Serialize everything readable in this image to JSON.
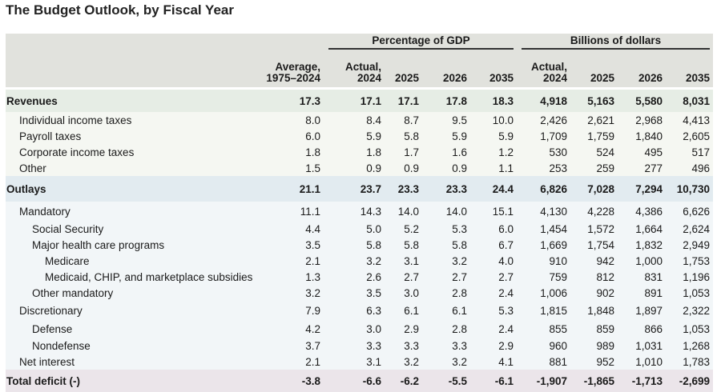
{
  "title": "The Budget Outlook, by Fiscal Year",
  "group_headers": {
    "pct": "Percentage of GDP",
    "bil": "Billions of dollars"
  },
  "columns": [
    [
      "Average,",
      "1975–2024"
    ],
    [
      "Actual,",
      "2024"
    ],
    [
      "",
      "2025"
    ],
    [
      "",
      "2026"
    ],
    [
      "",
      "2035"
    ],
    [
      "Actual,",
      "2024"
    ],
    [
      "",
      "2025"
    ],
    [
      "",
      "2026"
    ],
    [
      "",
      "2035"
    ]
  ],
  "rows": [
    {
      "label": "Revenues",
      "level": 0,
      "style": "rev",
      "values": [
        "17.3",
        "17.1",
        "17.1",
        "17.8",
        "18.3",
        "4,918",
        "5,163",
        "5,580",
        "8,031"
      ]
    },
    {
      "label": "Individual income taxes",
      "level": 1,
      "style": "revi",
      "values": [
        "8.0",
        "8.4",
        "8.7",
        "9.5",
        "10.0",
        "2,426",
        "2,621",
        "2,968",
        "4,413"
      ]
    },
    {
      "label": "Payroll taxes",
      "level": 1,
      "style": "revi",
      "values": [
        "6.0",
        "5.9",
        "5.8",
        "5.9",
        "5.9",
        "1,709",
        "1,759",
        "1,840",
        "2,605"
      ]
    },
    {
      "label": "Corporate income taxes",
      "level": 1,
      "style": "revi",
      "values": [
        "1.8",
        "1.8",
        "1.7",
        "1.6",
        "1.2",
        "530",
        "524",
        "495",
        "517"
      ]
    },
    {
      "label": "Other",
      "level": 1,
      "style": "revi",
      "values": [
        "1.5",
        "0.9",
        "0.9",
        "0.9",
        "1.1",
        "253",
        "259",
        "277",
        "496"
      ]
    },
    {
      "label": "Outlays",
      "level": 0,
      "style": "out",
      "values": [
        "21.1",
        "23.7",
        "23.3",
        "23.3",
        "24.4",
        "6,826",
        "7,028",
        "7,294",
        "10,730"
      ]
    },
    {
      "label": "Mandatory",
      "level": 1,
      "style": "outi",
      "values": [
        "11.1",
        "14.3",
        "14.0",
        "14.0",
        "15.1",
        "4,130",
        "4,228",
        "4,386",
        "6,626"
      ]
    },
    {
      "label": "Social Security",
      "level": 2,
      "style": "outi",
      "values": [
        "4.4",
        "5.0",
        "5.2",
        "5.3",
        "6.0",
        "1,454",
        "1,572",
        "1,664",
        "2,624"
      ]
    },
    {
      "label": "Major health care programs",
      "level": 2,
      "style": "outi",
      "values": [
        "3.5",
        "5.8",
        "5.8",
        "5.8",
        "6.7",
        "1,669",
        "1,754",
        "1,832",
        "2,949"
      ]
    },
    {
      "label": "Medicare",
      "level": 3,
      "style": "outi",
      "values": [
        "2.1",
        "3.2",
        "3.1",
        "3.2",
        "4.0",
        "910",
        "942",
        "1,000",
        "1,753"
      ]
    },
    {
      "label": "Medicaid, CHIP, and marketplace subsidies",
      "level": 3,
      "style": "outi",
      "values": [
        "1.3",
        "2.6",
        "2.7",
        "2.7",
        "2.7",
        "759",
        "812",
        "831",
        "1,196"
      ]
    },
    {
      "label": "Other mandatory",
      "level": 2,
      "style": "outi",
      "values": [
        "3.2",
        "3.5",
        "3.0",
        "2.8",
        "2.4",
        "1,006",
        "902",
        "891",
        "1,053"
      ]
    },
    {
      "label": "Discretionary",
      "level": 1,
      "style": "outi",
      "values": [
        "7.9",
        "6.3",
        "6.1",
        "6.1",
        "5.3",
        "1,815",
        "1,848",
        "1,897",
        "2,322"
      ]
    },
    {
      "label": "Defense",
      "level": 2,
      "style": "outi",
      "values": [
        "4.2",
        "3.0",
        "2.9",
        "2.8",
        "2.4",
        "855",
        "859",
        "866",
        "1,053"
      ]
    },
    {
      "label": "Nondefense",
      "level": 2,
      "style": "outi",
      "values": [
        "3.7",
        "3.3",
        "3.3",
        "3.3",
        "2.9",
        "960",
        "989",
        "1,031",
        "1,268"
      ]
    },
    {
      "label": "Net interest",
      "level": 1,
      "style": "outi",
      "values": [
        "2.1",
        "3.1",
        "3.2",
        "3.2",
        "4.1",
        "881",
        "952",
        "1,010",
        "1,783"
      ]
    },
    {
      "label": "Total deficit (-)",
      "level": 0,
      "style": "tot",
      "values": [
        "-3.8",
        "-6.6",
        "-6.2",
        "-5.5",
        "-6.1",
        "-1,907",
        "-1,865",
        "-1,713",
        "-2,699"
      ]
    }
  ]
}
